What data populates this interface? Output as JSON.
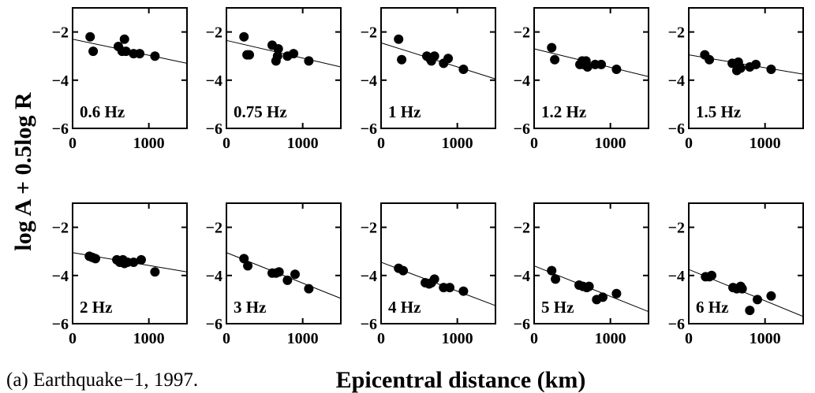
{
  "caption": "(a) Earthquake−1, 1997.",
  "chart_data": {
    "type": "scatter",
    "xlabel": "Epicentral distance (km)",
    "ylabel": "log A + 0.5log R",
    "xlim": [
      0,
      1500
    ],
    "ylim": [
      -6,
      -1
    ],
    "xticks": [
      0,
      1000
    ],
    "yticks": [
      -2,
      -4,
      -6
    ],
    "xtick_labels": [
      "0",
      "1000"
    ],
    "ytick_labels": [
      "−2",
      "−4",
      "−6"
    ],
    "grid": false,
    "panels": [
      {
        "label": "0.6 Hz",
        "fit": [
          [
            0,
            -2.3
          ],
          [
            1500,
            -3.3
          ]
        ],
        "points": [
          [
            230,
            -2.2
          ],
          [
            270,
            -2.8
          ],
          [
            600,
            -2.6
          ],
          [
            650,
            -2.8
          ],
          [
            680,
            -2.3
          ],
          [
            700,
            -2.8
          ],
          [
            800,
            -2.9
          ],
          [
            880,
            -2.9
          ],
          [
            1080,
            -3.0
          ]
        ]
      },
      {
        "label": "0.75 Hz",
        "fit": [
          [
            0,
            -2.35
          ],
          [
            1500,
            -3.45
          ]
        ],
        "points": [
          [
            230,
            -2.2
          ],
          [
            270,
            -2.95
          ],
          [
            300,
            -2.95
          ],
          [
            600,
            -2.55
          ],
          [
            650,
            -3.2
          ],
          [
            670,
            -3.0
          ],
          [
            680,
            -2.7
          ],
          [
            800,
            -3.0
          ],
          [
            880,
            -2.9
          ],
          [
            1080,
            -3.2
          ]
        ]
      },
      {
        "label": "1 Hz",
        "fit": [
          [
            0,
            -2.45
          ],
          [
            1500,
            -3.95
          ]
        ],
        "points": [
          [
            230,
            -2.3
          ],
          [
            270,
            -3.15
          ],
          [
            600,
            -3.0
          ],
          [
            640,
            -3.1
          ],
          [
            660,
            -3.2
          ],
          [
            700,
            -3.0
          ],
          [
            820,
            -3.3
          ],
          [
            880,
            -3.1
          ],
          [
            1080,
            -3.55
          ]
        ]
      },
      {
        "label": "1.2 Hz",
        "fit": [
          [
            0,
            -2.7
          ],
          [
            1500,
            -3.85
          ]
        ],
        "points": [
          [
            230,
            -2.65
          ],
          [
            270,
            -3.15
          ],
          [
            600,
            -3.35
          ],
          [
            630,
            -3.2
          ],
          [
            650,
            -3.35
          ],
          [
            680,
            -3.2
          ],
          [
            700,
            -3.45
          ],
          [
            800,
            -3.35
          ],
          [
            880,
            -3.35
          ],
          [
            1080,
            -3.55
          ]
        ]
      },
      {
        "label": "1.5 Hz",
        "fit": [
          [
            0,
            -2.95
          ],
          [
            1500,
            -3.75
          ]
        ],
        "points": [
          [
            210,
            -2.95
          ],
          [
            270,
            -3.15
          ],
          [
            570,
            -3.3
          ],
          [
            630,
            -3.6
          ],
          [
            650,
            -3.25
          ],
          [
            680,
            -3.5
          ],
          [
            800,
            -3.45
          ],
          [
            880,
            -3.35
          ],
          [
            1080,
            -3.55
          ]
        ]
      },
      {
        "label": "2 Hz",
        "fit": [
          [
            0,
            -3.05
          ],
          [
            1500,
            -3.85
          ]
        ],
        "points": [
          [
            220,
            -3.2
          ],
          [
            260,
            -3.25
          ],
          [
            300,
            -3.3
          ],
          [
            580,
            -3.35
          ],
          [
            620,
            -3.45
          ],
          [
            660,
            -3.35
          ],
          [
            680,
            -3.5
          ],
          [
            720,
            -3.45
          ],
          [
            800,
            -3.45
          ],
          [
            900,
            -3.35
          ],
          [
            1080,
            -3.85
          ]
        ]
      },
      {
        "label": "3 Hz",
        "fit": [
          [
            0,
            -3.05
          ],
          [
            1500,
            -4.95
          ]
        ],
        "points": [
          [
            230,
            -3.3
          ],
          [
            280,
            -3.6
          ],
          [
            600,
            -3.9
          ],
          [
            650,
            -3.9
          ],
          [
            690,
            -3.85
          ],
          [
            800,
            -4.2
          ],
          [
            900,
            -3.95
          ],
          [
            1080,
            -4.55
          ]
        ]
      },
      {
        "label": "4 Hz",
        "fit": [
          [
            0,
            -3.45
          ],
          [
            1500,
            -5.25
          ]
        ],
        "points": [
          [
            230,
            -3.7
          ],
          [
            290,
            -3.8
          ],
          [
            580,
            -4.3
          ],
          [
            630,
            -4.35
          ],
          [
            660,
            -4.3
          ],
          [
            700,
            -4.15
          ],
          [
            820,
            -4.5
          ],
          [
            900,
            -4.5
          ],
          [
            1080,
            -4.65
          ]
        ]
      },
      {
        "label": "5 Hz",
        "fit": [
          [
            0,
            -3.6
          ],
          [
            1500,
            -5.5
          ]
        ],
        "points": [
          [
            230,
            -3.8
          ],
          [
            280,
            -4.15
          ],
          [
            590,
            -4.4
          ],
          [
            640,
            -4.45
          ],
          [
            690,
            -4.5
          ],
          [
            720,
            -4.45
          ],
          [
            820,
            -5.0
          ],
          [
            900,
            -4.9
          ],
          [
            1080,
            -4.75
          ]
        ]
      },
      {
        "label": "6 Hz",
        "fit": [
          [
            0,
            -3.75
          ],
          [
            1500,
            -5.7
          ]
        ],
        "points": [
          [
            220,
            -4.05
          ],
          [
            270,
            -4.05
          ],
          [
            300,
            -4.0
          ],
          [
            580,
            -4.5
          ],
          [
            630,
            -4.55
          ],
          [
            680,
            -4.45
          ],
          [
            700,
            -4.55
          ],
          [
            800,
            -5.45
          ],
          [
            900,
            -5.0
          ],
          [
            1080,
            -4.85
          ]
        ]
      }
    ]
  }
}
